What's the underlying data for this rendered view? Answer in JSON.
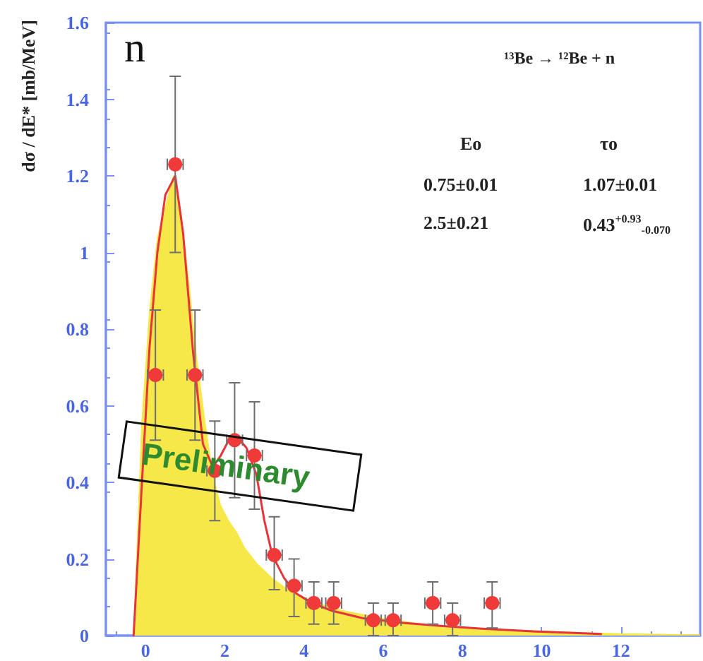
{
  "chart_data": {
    "type": "scatter",
    "title": "¹³Be → ¹²Be + n",
    "ylabel": "dσ / dE* [mb/MeV]",
    "annotations": [
      "n",
      "Preliminary",
      "Eo",
      "τo",
      "0.75±0.01",
      "1.07±0.01",
      "2.5±0.21",
      "0.43$^{+0.93}$$_{-0.070}$"
    ],
    "xlim": [
      -1,
      14
    ],
    "xticks": [
      0,
      2,
      4,
      6,
      8,
      10,
      12
    ],
    "ylim": [
      0,
      1.6
    ],
    "yticks": [
      0,
      0.2,
      0.4,
      0.6,
      0.8,
      1,
      1.2,
      1.4,
      1.6
    ],
    "grid": false,
    "series": [
      {
        "type": "area",
        "color": "#f7e84a",
        "x": [
          -0.3,
          -0.1,
          0.1,
          0.3,
          0.5,
          0.7,
          0.9,
          1.1,
          1.3,
          1.5,
          1.7,
          1.9,
          2.1,
          2.3,
          2.5,
          2.8,
          3.2,
          3.6,
          4,
          4.5,
          5,
          6,
          7,
          8,
          9,
          10,
          11,
          12,
          14
        ],
        "values": [
          0,
          0.55,
          0.85,
          1.04,
          1.12,
          1.2,
          1.1,
          0.92,
          0.72,
          0.56,
          0.42,
          0.34,
          0.3,
          0.27,
          0.23,
          0.19,
          0.15,
          0.12,
          0.1,
          0.08,
          0.065,
          0.045,
          0.03,
          0.022,
          0.016,
          0.012,
          0.008,
          0.005,
          0.002
        ]
      },
      {
        "type": "line",
        "color": "#e8333a",
        "marker": "none",
        "line_style": "solid",
        "x": [
          -0.3,
          -0.1,
          0.1,
          0.3,
          0.5,
          0.75,
          0.95,
          1.2,
          1.45,
          1.7,
          1.9,
          2.1,
          2.3,
          2.55,
          2.8,
          3,
          3.2,
          3.5,
          3.8,
          4.2,
          4.7,
          5.5,
          6.5,
          7.5,
          8.5,
          10,
          11.5
        ],
        "values": [
          0,
          0.38,
          0.75,
          1.0,
          1.15,
          1.2,
          1.05,
          0.74,
          0.5,
          0.44,
          0.47,
          0.51,
          0.52,
          0.49,
          0.42,
          0.3,
          0.21,
          0.15,
          0.11,
          0.085,
          0.065,
          0.045,
          0.033,
          0.025,
          0.018,
          0.01,
          0.004
        ]
      },
      {
        "color": "#f03a3a",
        "marker": "circle",
        "x": [
          0.25,
          0.75,
          1.25,
          1.75,
          2.25,
          2.75,
          3.25,
          3.75,
          4.25,
          4.75,
          5.75,
          6.25,
          7.25,
          7.75,
          8.75
        ],
        "values": [
          0.68,
          1.23,
          0.68,
          0.43,
          0.51,
          0.47,
          0.21,
          0.13,
          0.085,
          0.085,
          0.04,
          0.04,
          0.085,
          0.04,
          0.085
        ],
        "errors": [
          [
            0.51,
            0.85
          ],
          [
            1,
            1.46
          ],
          [
            0.51,
            0.85
          ],
          [
            0.3,
            0.56
          ],
          [
            0.36,
            0.66
          ],
          [
            0.33,
            0.61
          ],
          [
            0.12,
            0.31
          ],
          [
            0.05,
            0.2
          ],
          [
            0.03,
            0.14
          ],
          [
            0.03,
            0.14
          ],
          [
            0,
            0.085
          ],
          [
            0,
            0.085
          ],
          [
            0.03,
            0.14
          ],
          [
            0,
            0.085
          ],
          [
            0.02,
            0.14
          ]
        ],
        "xerrors": [
          0.2,
          0.2,
          0.2,
          0.2,
          0.2,
          0.2,
          0.2,
          0.2,
          0.2,
          0.2,
          0.2,
          0.2,
          0.2,
          0.2,
          0.2
        ]
      }
    ]
  }
}
